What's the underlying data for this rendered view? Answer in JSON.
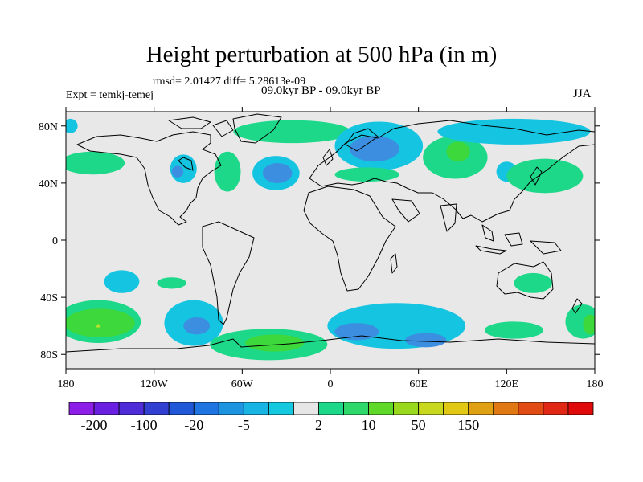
{
  "title": "Height perturbation at 500 hPa (in m)",
  "stats_text": "rmsd= 2.01427 diff= 5.28613e-09",
  "experiment_text": "Expt = temkj-temej",
  "period_text": "09.0kyr BP - 09.0kyr BP",
  "season": "JJA",
  "map": {
    "background": "#e8e8e8",
    "lat_ticks": [
      {
        "lat": 80,
        "label": "80N"
      },
      {
        "lat": 40,
        "label": "40N"
      },
      {
        "lat": 0,
        "label": "0"
      },
      {
        "lat": -40,
        "label": "40S"
      },
      {
        "lat": -80,
        "label": "80S"
      }
    ],
    "lon_ticks": [
      {
        "lon": -180,
        "label": "180"
      },
      {
        "lon": -120,
        "label": "120W"
      },
      {
        "lon": -60,
        "label": "60W"
      },
      {
        "lon": 0,
        "label": "0"
      },
      {
        "lon": 60,
        "label": "60E"
      },
      {
        "lon": 120,
        "label": "120E"
      },
      {
        "lon": 180,
        "label": "180"
      }
    ],
    "anomaly_blobs": [
      {
        "lon": -162,
        "lat": 54,
        "rlon": 22,
        "rlat": 8,
        "color": "#1ed88a"
      },
      {
        "lon": -100,
        "lat": 50,
        "rlon": 9,
        "rlat": 10,
        "color": "#14c4e0"
      },
      {
        "lon": -104,
        "lat": 48,
        "rlon": 4,
        "rlat": 4,
        "color": "#3c8ee0"
      },
      {
        "lon": -70,
        "lat": 48,
        "rlon": 9,
        "rlat": 14,
        "color": "#1ed88a"
      },
      {
        "lon": -37,
        "lat": 47,
        "rlon": 16,
        "rlat": 12,
        "color": "#14c4e0"
      },
      {
        "lon": -36,
        "lat": 47,
        "rlon": 10,
        "rlat": 7,
        "color": "#3c8ee0"
      },
      {
        "lon": -26,
        "lat": 76,
        "rlon": 40,
        "rlat": 8,
        "color": "#1ed88a"
      },
      {
        "lon": -177,
        "lat": 80,
        "rlon": 5,
        "rlat": 5,
        "color": "#14c4e0"
      },
      {
        "lon": 33,
        "lat": 66,
        "rlon": 30,
        "rlat": 17,
        "color": "#14c4e0"
      },
      {
        "lon": 30,
        "lat": 64,
        "rlon": 17,
        "rlat": 9,
        "color": "#3c8ee0"
      },
      {
        "lon": 25,
        "lat": 46,
        "rlon": 22,
        "rlat": 5,
        "color": "#1ed88a"
      },
      {
        "lon": 85,
        "lat": 58,
        "rlon": 22,
        "rlat": 15,
        "color": "#1ed88a"
      },
      {
        "lon": 87,
        "lat": 62,
        "rlon": 8,
        "rlat": 7,
        "color": "#3cd83c"
      },
      {
        "lon": 125,
        "lat": 76,
        "rlon": 52,
        "rlat": 9,
        "color": "#14c4e0"
      },
      {
        "lon": 120,
        "lat": 48,
        "rlon": 7,
        "rlat": 7,
        "color": "#14c4e0"
      },
      {
        "lon": 146,
        "lat": 45,
        "rlon": 26,
        "rlat": 12,
        "color": "#1ed88a"
      },
      {
        "lon": -142,
        "lat": -29,
        "rlon": 12,
        "rlat": 8,
        "color": "#14c4e0"
      },
      {
        "lon": -108,
        "lat": -30,
        "rlon": 10,
        "rlat": 4,
        "color": "#1ed88a"
      },
      {
        "lon": 138,
        "lat": -30,
        "rlon": 13,
        "rlat": 7,
        "color": "#1ed88a"
      },
      {
        "lon": -158,
        "lat": -57,
        "rlon": 29,
        "rlat": 15,
        "color": "#1ed88a"
      },
      {
        "lon": -157,
        "lat": -58,
        "rlon": 24,
        "rlat": 10,
        "color": "#3cd83c"
      },
      {
        "lon": 172,
        "lat": -57,
        "rlon": 12,
        "rlat": 12,
        "color": "#1ed88a"
      },
      {
        "lon": 177,
        "lat": -59,
        "rlon": 5,
        "rlat": 7,
        "color": "#3cd83c"
      },
      {
        "lon": -93,
        "lat": -58,
        "rlon": 20,
        "rlat": 16,
        "color": "#14c4e0"
      },
      {
        "lon": -91,
        "lat": -60,
        "rlon": 9,
        "rlat": 6,
        "color": "#3c8ee0"
      },
      {
        "lon": -42,
        "lat": -73,
        "rlon": 40,
        "rlat": 11,
        "color": "#1ed88a"
      },
      {
        "lon": -38,
        "lat": -72,
        "rlon": 20,
        "rlat": 6,
        "color": "#3cd83c"
      },
      {
        "lon": 45,
        "lat": -60,
        "rlon": 47,
        "rlat": 16,
        "color": "#14c4e0"
      },
      {
        "lon": 18,
        "lat": -64,
        "rlon": 15,
        "rlat": 6,
        "color": "#3c8ee0"
      },
      {
        "lon": 65,
        "lat": -70,
        "rlon": 14,
        "rlat": 5,
        "color": "#3c8ee0"
      },
      {
        "lon": 125,
        "lat": -63,
        "rlon": 20,
        "rlat": 6,
        "color": "#1ed88a"
      }
    ],
    "peak_marks": [
      {
        "lon": -158,
        "lat": -60,
        "color": "#b8e02c"
      }
    ]
  },
  "colorbar": {
    "colors": [
      "#8c1ee8",
      "#6a20e0",
      "#4e2cd8",
      "#3240d2",
      "#2058d8",
      "#1e74e0",
      "#1c94e0",
      "#18b4e4",
      "#14c8e0",
      "#e6e6e6",
      "#1ed88a",
      "#2ed86a",
      "#60d82a",
      "#9ad81e",
      "#c8d81e",
      "#e0c814",
      "#e0a014",
      "#e07814",
      "#e04c14",
      "#e02814",
      "#e00a0a"
    ],
    "labels": [
      "-200",
      "-100",
      "-20",
      "-5",
      "2",
      "10",
      "50",
      "150"
    ],
    "label_boundaries": [
      1,
      3,
      5,
      7,
      10,
      12,
      14,
      16
    ]
  }
}
